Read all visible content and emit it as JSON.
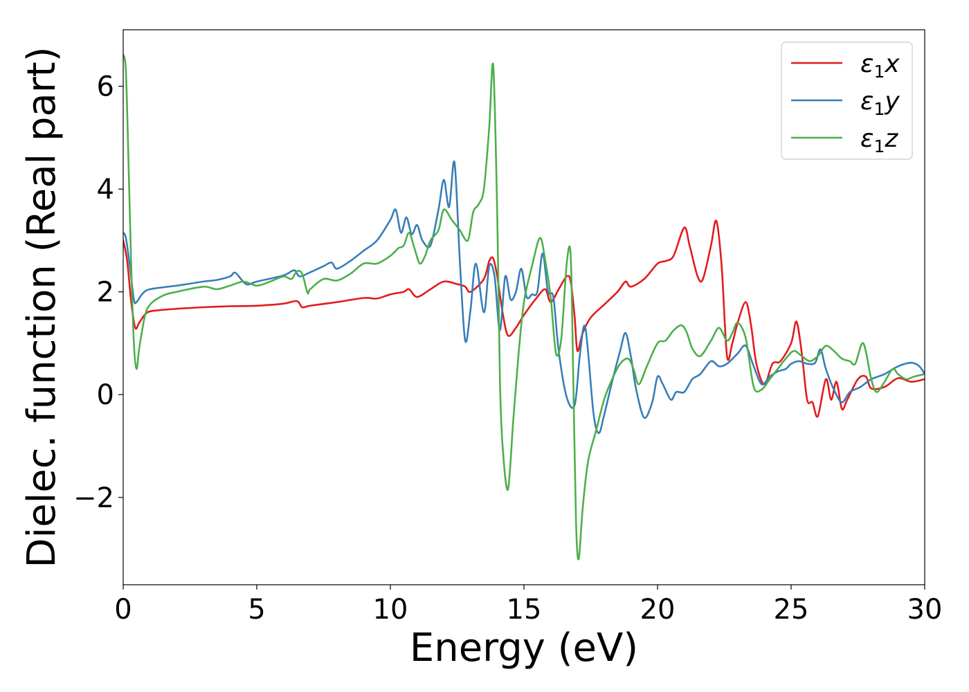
{
  "chart_data": {
    "type": "line",
    "title": "",
    "xlabel": "Energy (eV)",
    "ylabel": "Dielec. function (Real part)",
    "xlim": [
      0,
      30
    ],
    "ylim": [
      -3.7,
      7.1
    ],
    "xticks": [
      0,
      5,
      10,
      15,
      20,
      25,
      30
    ],
    "xtick_labels": [
      "0",
      "5",
      "10",
      "15",
      "20",
      "25",
      "30"
    ],
    "yticks": [
      -2,
      0,
      2,
      4,
      6
    ],
    "ytick_labels": [
      "−2",
      "0",
      "2",
      "4",
      "6"
    ],
    "grid": false,
    "legend_position": "top-right",
    "series": [
      {
        "name": "ε₁x",
        "legend_base": "ε",
        "legend_sub": "1",
        "legend_tail": "x",
        "color": "#e41a1c",
        "x": [
          0,
          0.15,
          0.3,
          0.45,
          0.6,
          0.8,
          1.0,
          1.5,
          2.0,
          3.0,
          4.0,
          5.0,
          6.0,
          6.5,
          6.7,
          7.0,
          8.0,
          9.0,
          9.5,
          10.0,
          10.5,
          10.7,
          11.0,
          11.5,
          12.0,
          12.5,
          12.8,
          13.0,
          13.5,
          13.7,
          13.85,
          14.0,
          14.2,
          14.4,
          14.7,
          15.0,
          15.5,
          15.8,
          16.0,
          16.3,
          16.6,
          16.75,
          16.9,
          17.0,
          17.2,
          17.5,
          18.0,
          18.5,
          18.8,
          19.0,
          19.5,
          20.0,
          20.3,
          20.6,
          21.0,
          21.2,
          21.5,
          21.7,
          22.0,
          22.2,
          22.4,
          22.6,
          22.8,
          23.0,
          23.3,
          23.5,
          23.7,
          24.0,
          24.3,
          24.6,
          25.0,
          25.2,
          25.4,
          25.6,
          25.8,
          26.0,
          26.3,
          26.5,
          26.7,
          26.9,
          27.1,
          27.5,
          27.8,
          28.0,
          28.5,
          29.0,
          29.5,
          30.0
        ],
        "y": [
          3.0,
          2.6,
          1.8,
          1.3,
          1.4,
          1.55,
          1.62,
          1.65,
          1.67,
          1.7,
          1.72,
          1.73,
          1.77,
          1.82,
          1.7,
          1.73,
          1.8,
          1.88,
          1.87,
          1.95,
          2.0,
          2.05,
          1.9,
          2.05,
          2.2,
          2.15,
          2.1,
          2.0,
          2.25,
          2.6,
          2.65,
          2.3,
          1.6,
          1.15,
          1.3,
          1.55,
          1.9,
          2.05,
          1.8,
          2.05,
          2.3,
          2.2,
          1.5,
          0.85,
          1.2,
          1.5,
          1.75,
          2.0,
          2.2,
          2.1,
          2.25,
          2.55,
          2.6,
          2.7,
          3.25,
          2.9,
          2.3,
          2.25,
          2.9,
          3.38,
          2.5,
          0.75,
          1.0,
          1.4,
          1.8,
          1.35,
          0.6,
          0.2,
          0.6,
          0.65,
          1.0,
          1.42,
          0.8,
          -0.1,
          -0.15,
          -0.42,
          0.3,
          -0.1,
          0.25,
          -0.28,
          -0.1,
          0.3,
          0.35,
          0.12,
          0.15,
          0.32,
          0.25,
          0.3
        ]
      },
      {
        "name": "ε₁y",
        "legend_base": "ε",
        "legend_sub": "1",
        "legend_tail": "y",
        "color": "#377eb8",
        "x": [
          0,
          0.1,
          0.25,
          0.4,
          0.5,
          0.7,
          1.0,
          2.0,
          3.0,
          3.5,
          4.0,
          4.2,
          4.6,
          5.0,
          6.0,
          6.4,
          6.6,
          7.0,
          7.5,
          7.8,
          8.0,
          8.5,
          9.0,
          9.5,
          10.0,
          10.2,
          10.4,
          10.6,
          10.8,
          11.0,
          11.2,
          11.5,
          11.8,
          12.0,
          12.2,
          12.4,
          12.6,
          12.8,
          13.0,
          13.2,
          13.5,
          13.7,
          13.9,
          14.1,
          14.3,
          14.5,
          14.7,
          14.9,
          15.1,
          15.3,
          15.5,
          15.7,
          15.9,
          16.1,
          16.3,
          16.6,
          16.9,
          17.1,
          17.3,
          17.6,
          17.8,
          18.0,
          18.3,
          18.6,
          18.8,
          19.0,
          19.2,
          19.5,
          19.8,
          20.0,
          20.2,
          20.5,
          20.7,
          21.0,
          21.3,
          21.6,
          22.0,
          22.3,
          22.6,
          23.0,
          23.3,
          23.6,
          23.9,
          24.2,
          24.5,
          24.8,
          25.0,
          25.3,
          25.6,
          25.9,
          26.1,
          26.3,
          26.6,
          26.9,
          27.2,
          27.6,
          28.0,
          28.5,
          29.0,
          29.5,
          29.8,
          30.0
        ],
        "y": [
          3.15,
          3.05,
          2.5,
          1.85,
          1.8,
          1.95,
          2.05,
          2.12,
          2.2,
          2.23,
          2.3,
          2.37,
          2.15,
          2.2,
          2.32,
          2.42,
          2.3,
          2.38,
          2.5,
          2.57,
          2.45,
          2.6,
          2.8,
          3.0,
          3.4,
          3.6,
          3.15,
          3.45,
          3.12,
          3.3,
          3.0,
          2.9,
          3.6,
          4.18,
          3.65,
          4.52,
          2.6,
          1.05,
          1.65,
          2.55,
          1.6,
          2.5,
          2.3,
          1.25,
          2.3,
          1.85,
          2.0,
          2.45,
          1.9,
          1.95,
          2.0,
          2.75,
          2.0,
          1.9,
          0.85,
          -0.05,
          -0.2,
          0.8,
          1.3,
          -0.35,
          -0.75,
          -0.4,
          0.25,
          0.85,
          1.2,
          0.75,
          0.1,
          -0.45,
          -0.15,
          0.35,
          0.2,
          -0.1,
          0.05,
          0.05,
          0.3,
          0.4,
          0.65,
          0.55,
          0.6,
          0.8,
          0.95,
          0.55,
          0.2,
          0.35,
          0.45,
          0.5,
          0.6,
          0.65,
          0.6,
          0.62,
          0.88,
          0.5,
          0.1,
          -0.15,
          0.05,
          0.15,
          0.3,
          0.4,
          0.55,
          0.62,
          0.55,
          0.4
        ]
      },
      {
        "name": "ε₁z",
        "legend_base": "ε",
        "legend_sub": "1",
        "legend_tail": "z",
        "color": "#4daf4a",
        "x": [
          0,
          0.1,
          0.2,
          0.3,
          0.4,
          0.5,
          0.6,
          0.8,
          1.0,
          1.5,
          2.0,
          3.0,
          3.5,
          4.0,
          4.5,
          5.0,
          5.5,
          6.0,
          6.3,
          6.5,
          6.7,
          6.9,
          7.0,
          7.5,
          8.0,
          8.5,
          9.0,
          9.5,
          10.0,
          10.3,
          10.5,
          10.7,
          10.9,
          11.1,
          11.3,
          11.5,
          11.8,
          12.0,
          12.3,
          12.6,
          12.9,
          13.1,
          13.3,
          13.5,
          13.7,
          13.85,
          14.0,
          14.1,
          14.2,
          14.4,
          14.6,
          14.8,
          15.0,
          15.3,
          15.6,
          15.8,
          16.0,
          16.2,
          16.4,
          16.6,
          16.75,
          16.85,
          16.95,
          17.05,
          17.2,
          17.4,
          17.7,
          18.0,
          18.3,
          18.6,
          18.9,
          19.1,
          19.3,
          19.6,
          20.0,
          20.3,
          20.6,
          20.9,
          21.1,
          21.3,
          21.6,
          22.0,
          22.3,
          22.6,
          22.8,
          23.0,
          23.3,
          23.6,
          23.9,
          24.2,
          24.5,
          24.8,
          25.1,
          25.4,
          25.7,
          26.0,
          26.3,
          26.6,
          26.9,
          27.2,
          27.4,
          27.7,
          28.0,
          28.2,
          28.5,
          28.8,
          29.0,
          29.3,
          29.6,
          30.0
        ],
        "y": [
          6.62,
          6.3,
          4.5,
          2.5,
          1.0,
          0.5,
          0.9,
          1.5,
          1.75,
          1.93,
          2.0,
          2.1,
          2.05,
          2.12,
          2.2,
          2.12,
          2.2,
          2.3,
          2.25,
          2.4,
          2.35,
          1.98,
          2.05,
          2.25,
          2.22,
          2.35,
          2.55,
          2.55,
          2.7,
          2.85,
          2.9,
          3.15,
          2.85,
          2.55,
          2.7,
          3.0,
          3.2,
          3.6,
          3.4,
          3.2,
          3.0,
          3.55,
          3.7,
          4.0,
          5.2,
          6.4,
          3.5,
          0.3,
          -1.0,
          -1.85,
          -0.5,
          0.8,
          1.8,
          2.5,
          3.05,
          2.6,
          1.9,
          0.8,
          1.1,
          2.55,
          2.7,
          0.2,
          -2.5,
          -3.2,
          -2.2,
          -1.3,
          -0.7,
          -0.1,
          0.3,
          0.6,
          0.7,
          0.5,
          0.2,
          0.55,
          1.0,
          1.05,
          1.25,
          1.35,
          1.2,
          0.9,
          0.75,
          1.05,
          1.3,
          1.05,
          1.2,
          1.4,
          1.1,
          0.15,
          0.1,
          0.3,
          0.5,
          0.7,
          0.85,
          0.75,
          0.65,
          0.75,
          0.95,
          0.85,
          0.7,
          0.65,
          0.6,
          1.0,
          0.3,
          0.05,
          0.25,
          0.5,
          0.4,
          0.3,
          0.35,
          0.4
        ]
      }
    ]
  }
}
